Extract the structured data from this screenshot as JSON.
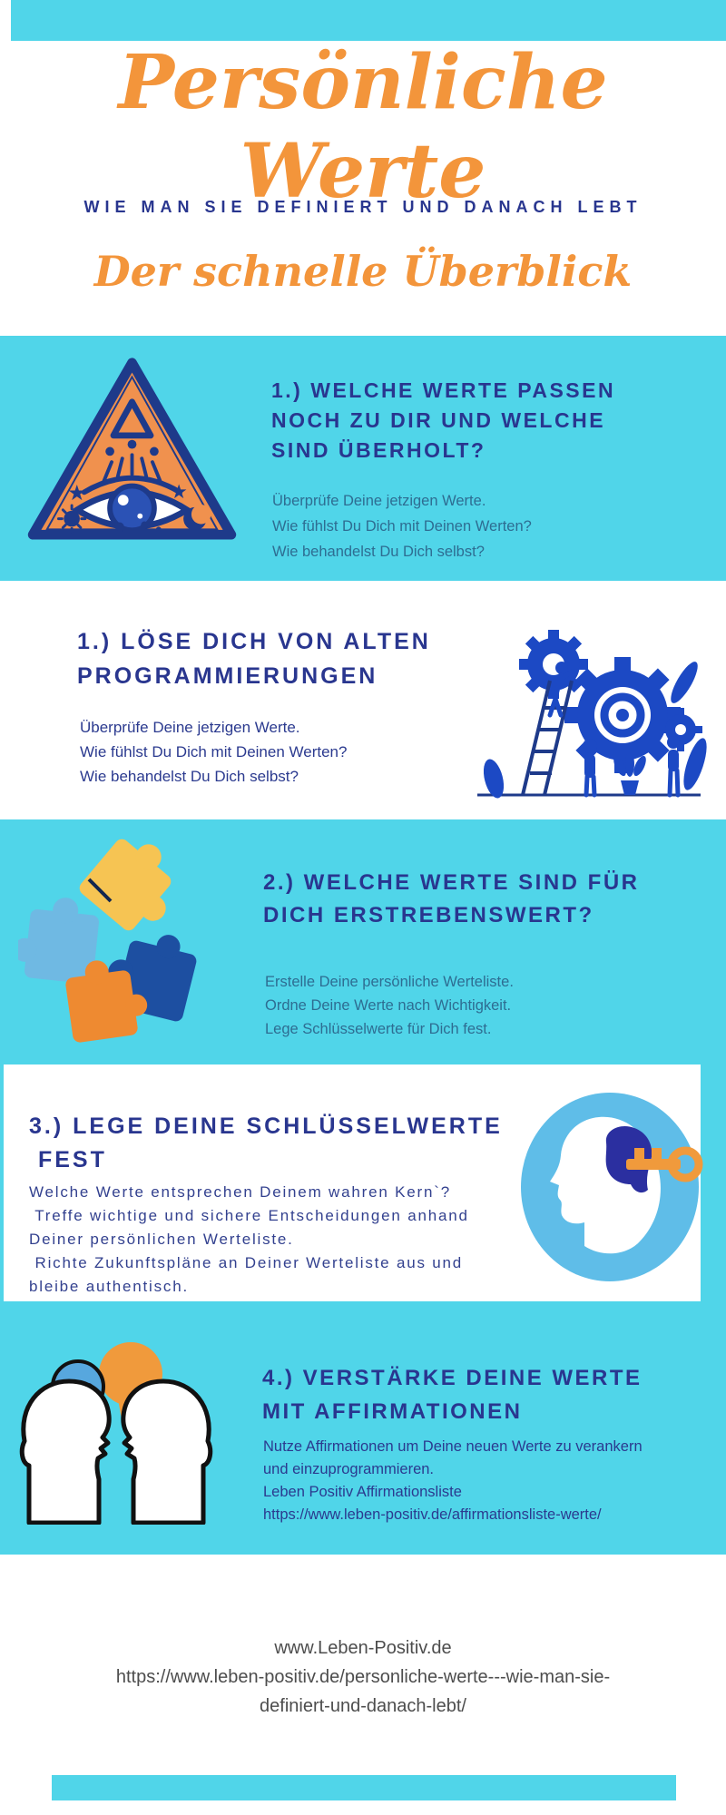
{
  "colors": {
    "cyan": "#50D5E9",
    "navy_heading": "#29368F",
    "teal_body": "#2E6D92",
    "orange_accent": "#F3953B",
    "royal_blue": "#1C49C4",
    "light_blue": "#6FB9E3",
    "yellow": "#F6C453",
    "footer_text": "#4D4D4D"
  },
  "header": {
    "title": "Persönliche Werte",
    "subtitle": "WIE MAN SIE DEFINIERT UND DANACH LEBT",
    "overview": "Der schnelle Überblick"
  },
  "sections": [
    {
      "id": "values-check",
      "illustration": "all-seeing-eye-triangle",
      "heading_lines": [
        "1.) WELCHE WERTE PASSEN",
        "NOCH ZU DIR UND WELCHE",
        "SIND ÜBERHOLT?"
      ],
      "body_lines": [
        "Überprüfe Deine jetzigen Werte.",
        "Wie fühlst Du Dich mit Deinen Werten?",
        "Wie behandelst Du Dich selbst?"
      ]
    },
    {
      "id": "old-programming",
      "illustration": "gears-teamwork",
      "heading_lines": [
        "1.) LÖSE DICH VON ALTEN",
        "PROGRAMMIERUNGEN"
      ],
      "body_lines": [
        "Überprüfe Deine jetzigen Werte.",
        "Wie fühlst Du Dich mit Deinen Werten?",
        "Wie behandelst Du Dich selbst?"
      ]
    },
    {
      "id": "desirable-values",
      "illustration": "puzzle-pieces",
      "heading_lines": [
        "2.) WELCHE WERTE SIND FÜR",
        "DICH ERSTREBENSWERT?"
      ],
      "body_lines": [
        "Erstelle Deine persönliche Werteliste.",
        "Ordne Deine Werte nach Wichtigkeit.",
        "Lege Schlüsselwerte für Dich fest."
      ]
    },
    {
      "id": "key-values",
      "illustration": "head-with-key",
      "heading_lines": [
        "3.) LEGE DEINE SCHLÜSSELWERTE",
        " FEST"
      ],
      "body_lines": [
        "Welche Werte entsprechen Deinem wahren Kern`?",
        " Treffe wichtige und sichere Entscheidungen anhand",
        "Deiner persönlichen Werteliste.",
        " Richte Zukunftspläne an Deiner Werteliste aus und",
        "bleibe authentisch."
      ]
    },
    {
      "id": "affirmations",
      "illustration": "conversation-heads",
      "heading_lines": [
        "4.) VERSTÄRKE DEINE WERTE",
        "MIT AFFIRMATIONEN"
      ],
      "body_lines": [
        "Nutze Affirmationen um Deine neuen Werte zu verankern",
        "und einzuprogrammieren.",
        "Leben Positiv Affirmationsliste"
      ],
      "link": "https://www.leben-positiv.de/affirmationsliste-werte/"
    }
  ],
  "footer": {
    "site": "www.Leben-Positiv.de",
    "url_lines": [
      "https://www.leben-positiv.de/personliche-werte---wie-man-sie-",
      "definiert-und-danach-lebt/"
    ]
  }
}
